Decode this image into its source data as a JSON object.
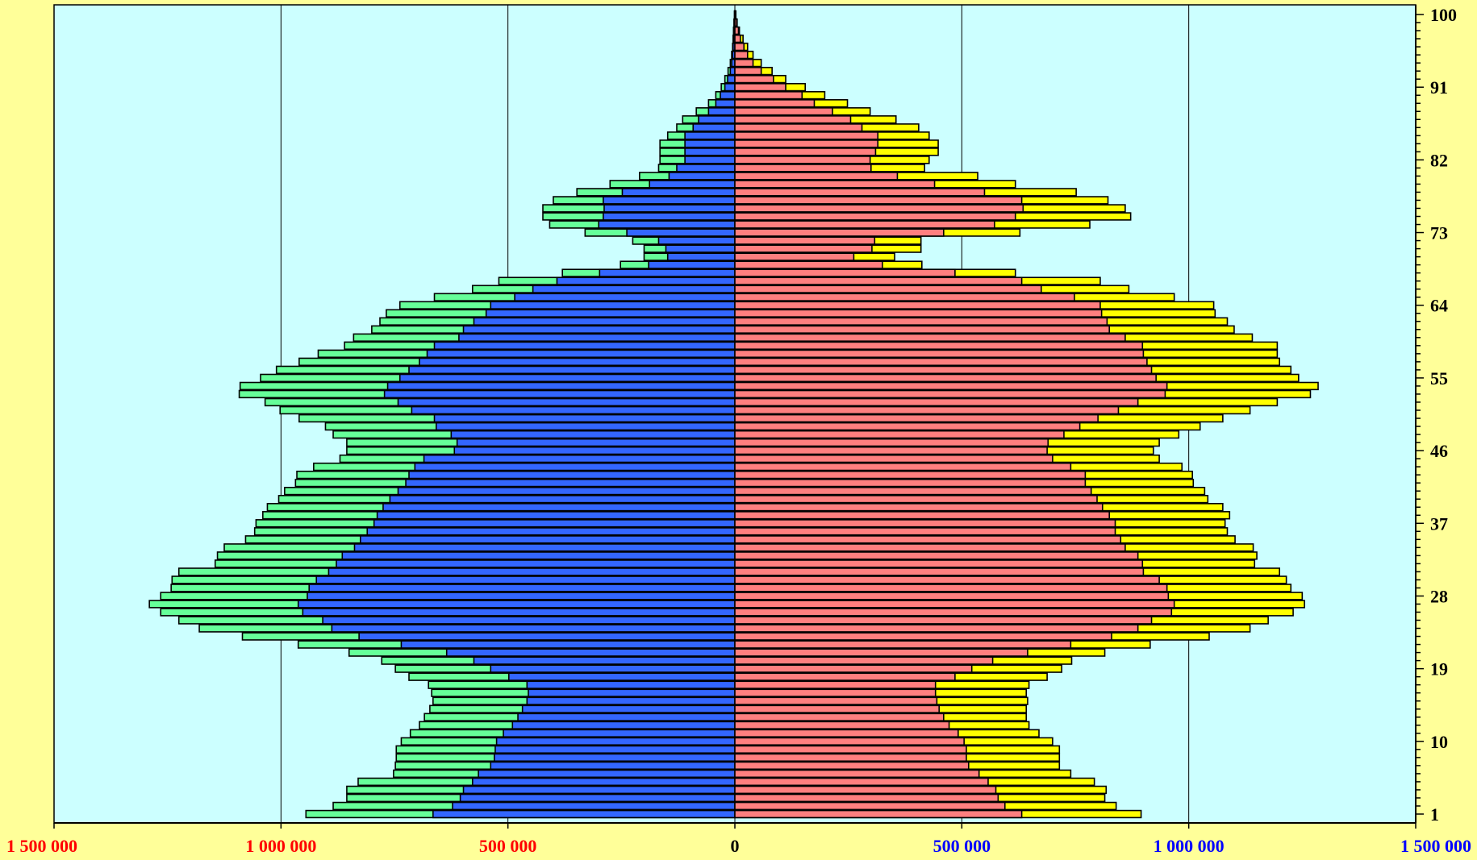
{
  "chart_data": {
    "type": "bar",
    "orientation": "horizontal-pyramid",
    "title": "",
    "xlabel": "",
    "ylabel": "",
    "xlim": [
      -1500000,
      1500000
    ],
    "grid": true,
    "legend": "none",
    "colors": {
      "background": "#FFFF99",
      "plot_area": "#CCFFFF",
      "left_inner": "#3366FF",
      "left_outer": "#66FF99",
      "right_inner": "#FF7F7F",
      "right_outer": "#FFFF00",
      "left_tick_labels": "#FF0000",
      "right_tick_labels": "#0000FF",
      "y_tick_labels": "#000000"
    },
    "x_ticks": [
      {
        "value": -1500000,
        "label": "1 500 000"
      },
      {
        "value": -1000000,
        "label": "1 000 000"
      },
      {
        "value": -500000,
        "label": "500 000"
      },
      {
        "value": 0,
        "label": "0"
      },
      {
        "value": 500000,
        "label": "500 000"
      },
      {
        "value": 1000000,
        "label": "1 000 000"
      },
      {
        "value": 1500000,
        "label": "1 500 000"
      }
    ],
    "y_ticks": [
      {
        "value": 1,
        "label": "1"
      },
      {
        "value": 10,
        "label": "10"
      },
      {
        "value": 19,
        "label": "19"
      },
      {
        "value": 28,
        "label": "28"
      },
      {
        "value": 37,
        "label": "37"
      },
      {
        "value": 46,
        "label": "46"
      },
      {
        "value": 55,
        "label": "55"
      },
      {
        "value": 64,
        "label": "64"
      },
      {
        "value": 73,
        "label": "73"
      },
      {
        "value": 82,
        "label": "82"
      },
      {
        "value": 91,
        "label": "91"
      },
      {
        "value": 100,
        "label": "100"
      }
    ],
    "ages": [
      1,
      2,
      3,
      4,
      5,
      6,
      7,
      8,
      9,
      10,
      11,
      12,
      13,
      14,
      15,
      16,
      17,
      18,
      19,
      20,
      21,
      22,
      23,
      24,
      25,
      26,
      27,
      28,
      29,
      30,
      31,
      32,
      33,
      34,
      35,
      36,
      37,
      38,
      39,
      40,
      41,
      42,
      43,
      44,
      45,
      46,
      47,
      48,
      49,
      50,
      51,
      52,
      53,
      54,
      55,
      56,
      57,
      58,
      59,
      60,
      61,
      62,
      63,
      64,
      65,
      66,
      67,
      68,
      69,
      70,
      71,
      72,
      73,
      74,
      75,
      76,
      77,
      78,
      79,
      80,
      81,
      82,
      83,
      84,
      85,
      86,
      87,
      88,
      89,
      90,
      91,
      92,
      93,
      94,
      95,
      96,
      97,
      98,
      99,
      100
    ],
    "series": [
      {
        "side": "left",
        "layer": "inner",
        "values": [
          665000,
          622000,
          605000,
          598000,
          578000,
          565000,
          538000,
          530000,
          528000,
          525000,
          510000,
          490000,
          478000,
          468000,
          458000,
          455000,
          458000,
          498000,
          538000,
          575000,
          635000,
          735000,
          828000,
          888000,
          908000,
          952000,
          962000,
          942000,
          938000,
          922000,
          895000,
          878000,
          865000,
          838000,
          825000,
          810000,
          795000,
          788000,
          775000,
          760000,
          742000,
          725000,
          718000,
          705000,
          685000,
          618000,
          612000,
          625000,
          658000,
          662000,
          712000,
          742000,
          772000,
          765000,
          738000,
          718000,
          695000,
          678000,
          662000,
          608000,
          598000,
          575000,
          548000,
          538000,
          485000,
          445000,
          392000,
          298000,
          190000,
          148000,
          152000,
          168000,
          238000,
          300000,
          290000,
          288000,
          290000,
          248000,
          188000,
          145000,
          128000,
          110000,
          110000,
          110000,
          110000,
          92000,
          80000,
          58000,
          42000,
          32000,
          22000,
          16000,
          10000,
          7000,
          5000,
          4000,
          3000,
          2000,
          1000,
          500
        ]
      },
      {
        "side": "left",
        "layer": "outer",
        "values": [
          945000,
          885000,
          855000,
          855000,
          830000,
          752000,
          748000,
          746000,
          746000,
          735000,
          715000,
          695000,
          684000,
          672000,
          665000,
          668000,
          675000,
          718000,
          748000,
          778000,
          850000,
          962000,
          1085000,
          1180000,
          1225000,
          1265000,
          1290000,
          1265000,
          1242000,
          1240000,
          1225000,
          1145000,
          1140000,
          1125000,
          1078000,
          1058000,
          1055000,
          1040000,
          1030000,
          1005000,
          992000,
          968000,
          965000,
          928000,
          870000,
          855000,
          855000,
          885000,
          902000,
          960000,
          1002000,
          1035000,
          1092000,
          1090000,
          1045000,
          1010000,
          960000,
          918000,
          860000,
          840000,
          800000,
          782000,
          768000,
          738000,
          662000,
          578000,
          520000,
          380000,
          252000,
          200000,
          200000,
          225000,
          330000,
          408000,
          423000,
          423000,
          400000,
          348000,
          275000,
          210000,
          168000,
          165000,
          165000,
          165000,
          148000,
          128000,
          115000,
          85000,
          58000,
          42000,
          30000,
          22000,
          15000,
          10000,
          7000,
          5000,
          4000,
          3000,
          2000,
          1000
        ]
      },
      {
        "side": "right",
        "layer": "inner",
        "values": [
          632000,
          595000,
          580000,
          575000,
          558000,
          538000,
          515000,
          510000,
          510000,
          505000,
          492000,
          472000,
          460000,
          450000,
          445000,
          442000,
          442000,
          485000,
          522000,
          568000,
          645000,
          740000,
          830000,
          888000,
          918000,
          962000,
          968000,
          955000,
          952000,
          935000,
          900000,
          898000,
          888000,
          860000,
          850000,
          838000,
          838000,
          825000,
          810000,
          798000,
          785000,
          772000,
          772000,
          740000,
          700000,
          688000,
          690000,
          725000,
          760000,
          800000,
          845000,
          888000,
          948000,
          952000,
          928000,
          918000,
          908000,
          900000,
          898000,
          860000,
          825000,
          820000,
          808000,
          805000,
          748000,
          675000,
          632000,
          485000,
          325000,
          262000,
          302000,
          308000,
          460000,
          572000,
          618000,
          635000,
          632000,
          550000,
          440000,
          358000,
          300000,
          298000,
          310000,
          315000,
          315000,
          280000,
          255000,
          215000,
          175000,
          148000,
          112000,
          85000,
          58000,
          40000,
          28000,
          20000,
          12000,
          8000,
          4000,
          2000
        ]
      },
      {
        "side": "right",
        "layer": "outer",
        "values": [
          895000,
          840000,
          815000,
          818000,
          792000,
          740000,
          715000,
          715000,
          715000,
          700000,
          670000,
          648000,
          642000,
          642000,
          645000,
          642000,
          648000,
          688000,
          720000,
          742000,
          815000,
          915000,
          1045000,
          1135000,
          1175000,
          1230000,
          1255000,
          1250000,
          1225000,
          1215000,
          1200000,
          1145000,
          1150000,
          1142000,
          1102000,
          1085000,
          1080000,
          1090000,
          1075000,
          1042000,
          1035000,
          1010000,
          1008000,
          985000,
          935000,
          922000,
          935000,
          978000,
          1025000,
          1075000,
          1135000,
          1195000,
          1268000,
          1285000,
          1242000,
          1225000,
          1200000,
          1195000,
          1195000,
          1140000,
          1100000,
          1085000,
          1058000,
          1055000,
          968000,
          868000,
          805000,
          618000,
          412000,
          352000,
          410000,
          410000,
          628000,
          782000,
          872000,
          860000,
          822000,
          752000,
          618000,
          535000,
          418000,
          428000,
          448000,
          448000,
          428000,
          405000,
          355000,
          298000,
          248000,
          198000,
          155000,
          112000,
          82000,
          58000,
          40000,
          28000,
          18000,
          10000,
          5000,
          2000
        ]
      }
    ]
  }
}
